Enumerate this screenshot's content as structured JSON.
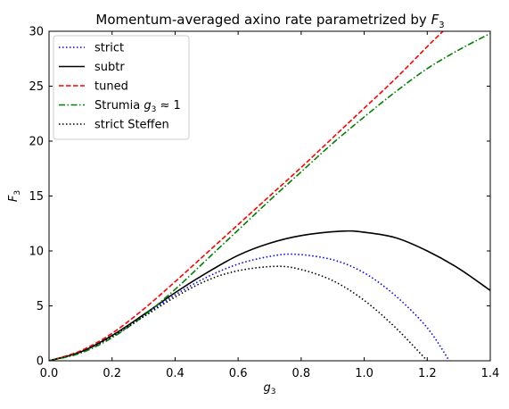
{
  "chart_data": {
    "type": "line",
    "title_prefix": "Momentum-averaged axino rate parametrized by ",
    "title_symbol": "F",
    "title_sub": "3",
    "xlabel_symbol": "g",
    "xlabel_sub": "3",
    "ylabel_symbol": "F",
    "ylabel_sub": "3",
    "xlim": [
      0,
      1.4
    ],
    "ylim": [
      0,
      30
    ],
    "xticks": [
      "0.0",
      "0.2",
      "0.4",
      "0.6",
      "0.8",
      "1.0",
      "1.2",
      "1.4"
    ],
    "yticks": [
      "0",
      "5",
      "10",
      "15",
      "20",
      "25",
      "30"
    ],
    "grid": false,
    "legend_position": "top-left",
    "series": [
      {
        "name": "strict",
        "legend_prefix": "strict",
        "legend_symbol": "",
        "legend_suffix": "",
        "color": "#0000ff",
        "dash": "dotted",
        "x": [
          0,
          0.1,
          0.2,
          0.3,
          0.4,
          0.5,
          0.6,
          0.7,
          0.78,
          0.9,
          1.0,
          1.1,
          1.2,
          1.27
        ],
        "y": [
          0,
          0.8,
          2.3,
          4.1,
          6.0,
          7.6,
          8.8,
          9.5,
          9.7,
          9.2,
          8.0,
          5.9,
          3.0,
          0
        ]
      },
      {
        "name": "subtr",
        "legend_prefix": "subtr",
        "legend_symbol": "",
        "legend_suffix": "",
        "color": "#000000",
        "dash": "solid",
        "x": [
          0,
          0.1,
          0.2,
          0.3,
          0.4,
          0.5,
          0.6,
          0.7,
          0.8,
          0.93,
          1.0,
          1.1,
          1.2,
          1.3,
          1.4
        ],
        "y": [
          0,
          0.8,
          2.3,
          4.2,
          6.2,
          8.0,
          9.6,
          10.7,
          11.4,
          11.8,
          11.7,
          11.2,
          10.0,
          8.4,
          6.4
        ]
      },
      {
        "name": "tuned",
        "legend_prefix": "tuned",
        "legend_symbol": "",
        "legend_suffix": "",
        "color": "#ff0000",
        "dash": "dashed",
        "x": [
          0,
          0.1,
          0.2,
          0.3,
          0.4,
          0.5,
          0.6,
          0.7,
          0.8,
          0.9,
          1.0,
          1.1,
          1.2,
          1.25
        ],
        "y": [
          0,
          0.9,
          2.5,
          4.7,
          7.2,
          9.8,
          12.4,
          15.0,
          17.6,
          20.3,
          23.0,
          25.7,
          28.6,
          30.0
        ]
      },
      {
        "name": "Strumia g3 ≈ 1",
        "legend_prefix": "Strumia ",
        "legend_symbol": "g",
        "legend_sub": "3",
        "legend_suffix": " ≈ 1",
        "color": "#008000",
        "dash": "dashdot",
        "x": [
          0,
          0.1,
          0.2,
          0.3,
          0.4,
          0.5,
          0.6,
          0.7,
          0.8,
          0.9,
          1.0,
          1.1,
          1.2,
          1.3,
          1.4
        ],
        "y": [
          0,
          0.7,
          2.1,
          4.1,
          6.5,
          9.2,
          11.9,
          14.6,
          17.2,
          19.8,
          22.2,
          24.5,
          26.6,
          28.3,
          29.8
        ]
      },
      {
        "name": "strict Steffen",
        "legend_prefix": "strict Steffen",
        "legend_symbol": "",
        "legend_suffix": "",
        "color": "#000000",
        "dash": "dotted",
        "x": [
          0,
          0.1,
          0.2,
          0.3,
          0.4,
          0.5,
          0.6,
          0.72,
          0.8,
          0.9,
          1.0,
          1.1,
          1.2
        ],
        "y": [
          0,
          0.8,
          2.2,
          4.0,
          5.8,
          7.3,
          8.2,
          8.6,
          8.3,
          7.3,
          5.5,
          3.0,
          0
        ]
      }
    ]
  }
}
